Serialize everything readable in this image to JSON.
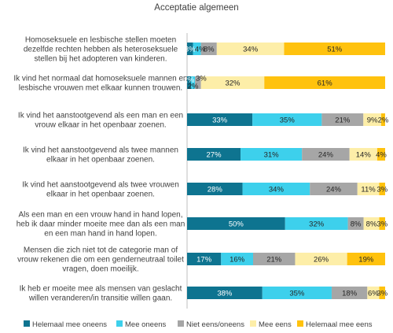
{
  "chart_data": {
    "type": "bar",
    "stacked": "percent",
    "orientation": "horizontal",
    "title": "Acceptatie algemeen",
    "categories": [
      [
        "Homoseksuele en lesbische stellen moeten",
        "dezelfde rechten hebben als heteroseksuele",
        "stellen bij het adopteren van kinderen."
      ],
      [
        "Ik vind het normaal dat homoseksuele mannen en",
        "lesbische vrouwen met elkaar kunnen trouwen."
      ],
      [
        "Ik vind het aanstootgevend als een man en een",
        "vrouw elkaar in het openbaar zoenen."
      ],
      [
        "Ik vind het aanstootgevend als twee mannen",
        "elkaar in het openbaar zoenen."
      ],
      [
        "Ik vind het aanstootgevend als twee vrouwen",
        "elkaar in het openbaar zoenen."
      ],
      [
        "Als een man en een vrouw hand in hand lopen,",
        "heb ik daar minder moeite mee dan als een man",
        "en een man hand in hand lopen."
      ],
      [
        "Mensen die zich niet tot de categorie man of",
        "vrouw rekenen die om een genderneutraal toilet",
        "vragen, doen moeilijk."
      ],
      [
        "Ik heb er moeite mee als mensen van geslacht",
        "willen veranderen/in transitie willen gaan."
      ]
    ],
    "series": [
      {
        "name": "Helemaal mee oneens",
        "color": "#0e7490",
        "values": [
          3,
          2,
          33,
          27,
          28,
          50,
          17,
          38
        ],
        "labels": [
          "3%",
          "2%",
          "33%",
          "27%",
          "28%",
          "50%",
          "17%",
          "38%"
        ]
      },
      {
        "name": "Mee oneens",
        "color": "#3dd0ec",
        "values": [
          4,
          2,
          35,
          31,
          34,
          32,
          16,
          35
        ],
        "labels": [
          "4%",
          "2%",
          "35%",
          "31%",
          "34%",
          "32%",
          "16%",
          "35%"
        ]
      },
      {
        "name": "Niet eens/oneens",
        "color": "#a6a6a6",
        "values": [
          8,
          3,
          21,
          24,
          24,
          8,
          21,
          18
        ],
        "labels": [
          "8%",
          "3%",
          "21%",
          "24%",
          "24%",
          "8%",
          "21%",
          "18%"
        ]
      },
      {
        "name": "Mee eens",
        "color": "#fdeea8",
        "values": [
          34,
          32,
          9,
          14,
          11,
          8,
          26,
          6
        ],
        "labels": [
          "34%",
          "32%",
          "9%",
          "14%",
          "11%",
          "8%",
          "26%",
          "6%"
        ]
      },
      {
        "name": "Helemaal mee eens",
        "color": "#ffc20e",
        "values": [
          51,
          61,
          2,
          4,
          3,
          3,
          19,
          3
        ],
        "labels": [
          "51%",
          "61%",
          "2%",
          "4%",
          "3%",
          "3%",
          "19%",
          "3%"
        ]
      }
    ],
    "xlim": [
      0,
      100
    ],
    "legend_position": "bottom",
    "grid": false
  }
}
